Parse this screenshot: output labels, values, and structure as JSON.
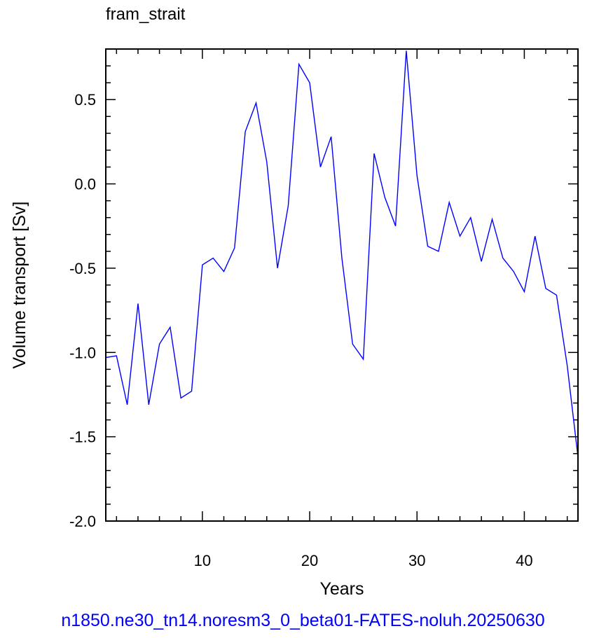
{
  "chart_data": {
    "type": "line",
    "title": "fram_strait",
    "xlabel": "Years",
    "ylabel": "Volume transport [Sv]",
    "xlim": [
      1,
      45
    ],
    "ylim": [
      -2.0,
      0.8
    ],
    "x_ticks": [
      10,
      20,
      30,
      40
    ],
    "x_tick_labels": [
      "10",
      "20",
      "30",
      "40"
    ],
    "y_ticks": [
      -2.0,
      -1.5,
      -1.0,
      -0.5,
      0.0,
      0.5
    ],
    "y_tick_labels": [
      "-2.0",
      "-1.5",
      "-1.0",
      "-0.5",
      "0.0",
      "0.5"
    ],
    "grid": false,
    "line_color": "#0000ff",
    "series": [
      {
        "x": [
          1,
          2,
          3,
          4,
          5,
          6,
          7,
          8,
          9,
          10,
          11,
          12,
          13,
          14,
          15,
          16,
          17,
          18,
          19,
          20,
          21,
          22,
          23,
          24,
          25,
          26,
          27,
          28,
          29,
          30,
          31,
          32,
          33,
          34,
          35,
          36,
          37,
          38,
          39,
          40,
          41,
          42,
          43,
          44,
          45
        ],
        "values": [
          -1.03,
          -1.02,
          -1.31,
          -0.71,
          -1.31,
          -0.95,
          -0.85,
          -1.27,
          -1.23,
          -0.48,
          -0.44,
          -0.52,
          -0.38,
          0.31,
          0.48,
          0.13,
          -0.5,
          -0.13,
          0.71,
          0.6,
          0.1,
          0.28,
          -0.44,
          -0.95,
          -1.04,
          0.18,
          -0.08,
          -0.25,
          0.79,
          0.05,
          -0.37,
          -0.4,
          -0.11,
          -0.31,
          -0.2,
          -0.46,
          -0.21,
          -0.44,
          -0.52,
          -0.64,
          -0.31,
          -0.62,
          -0.66,
          -1.08,
          -1.62
        ]
      }
    ]
  },
  "footer_text": "n1850.ne30_tn14.noresm3_0_beta01-FATES-noluh.20250630"
}
